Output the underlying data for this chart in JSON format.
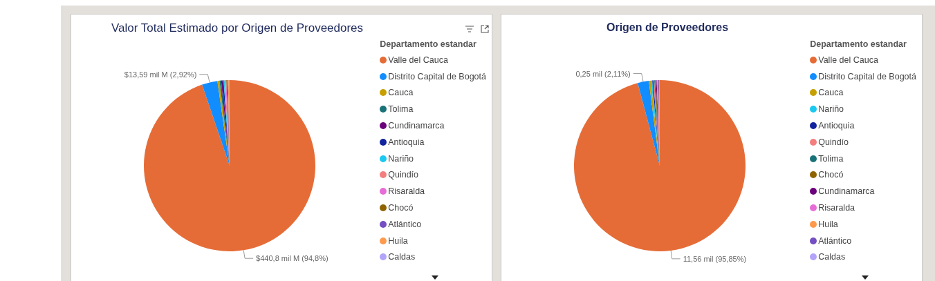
{
  "chart_data": [
    {
      "type": "pie",
      "title": "Valor Total Estimado por Origen de Proveedores",
      "legend_title": "Departamento estandar",
      "legend": "right",
      "categories": [
        "Valle del Cauca",
        "Distrito Capital de Bogotá",
        "Cauca",
        "Tolima",
        "Cundinamarca",
        "Antioquia",
        "Nariño",
        "Quindío",
        "Risaralda",
        "Chocó",
        "Atlántico",
        "Huila",
        "Caldas"
      ],
      "values": [
        94.8,
        2.92,
        0.4,
        0.3,
        0.25,
        0.22,
        0.18,
        0.16,
        0.16,
        0.16,
        0.15,
        0.15,
        0.15
      ],
      "colors": [
        "#e66c37",
        "#118dff",
        "#c6a000",
        "#197278",
        "#6b007b",
        "#12239e",
        "#1bc8f0",
        "#f47e7e",
        "#e66cd6",
        "#8f6400",
        "#744ec2",
        "#fd9a4e",
        "#b3a3f9"
      ],
      "value_labels": [
        "$440,8 mil M (94,8%)",
        "$13,59 mil M (2,92%)",
        null,
        null,
        null,
        null,
        null,
        null,
        null,
        null,
        null,
        null,
        null
      ]
    },
    {
      "type": "pie",
      "title": "Origen de Proveedores",
      "legend_title": "Departamento estandar",
      "legend": "right",
      "categories": [
        "Valle del Cauca",
        "Distrito Capital de Bogotá",
        "Cauca",
        "Nariño",
        "Antioquia",
        "Quindío",
        "Tolima",
        "Chocó",
        "Cundinamarca",
        "Risaralda",
        "Huila",
        "Atlántico",
        "Caldas"
      ],
      "values": [
        95.85,
        2.11,
        0.4,
        0.25,
        0.2,
        0.17,
        0.15,
        0.15,
        0.15,
        0.15,
        0.14,
        0.14,
        0.14
      ],
      "colors": [
        "#e66c37",
        "#118dff",
        "#c6a000",
        "#1bc8f0",
        "#12239e",
        "#f47e7e",
        "#197278",
        "#8f6400",
        "#6b007b",
        "#e66cd6",
        "#fd9a4e",
        "#744ec2",
        "#b3a3f9"
      ],
      "value_labels": [
        "11,56 mil (95,85%)",
        "0,25 mil (2,11%)",
        null,
        null,
        null,
        null,
        null,
        null,
        null,
        null,
        null,
        null,
        null
      ]
    }
  ]
}
